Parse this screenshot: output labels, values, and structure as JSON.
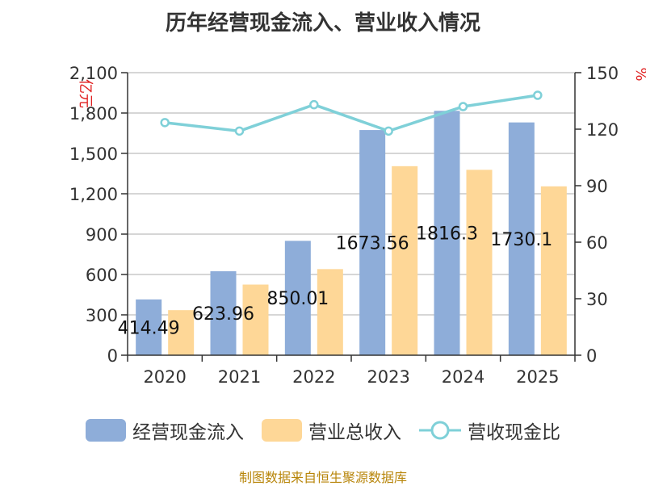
{
  "chart_data": {
    "type": "bar",
    "title": "历年经营现金流入、营业收入情况",
    "categories": [
      "2020",
      "2021",
      "2022",
      "2023",
      "2024",
      "2025"
    ],
    "series": [
      {
        "name": "经营现金流入",
        "kind": "bar",
        "axis": "left",
        "color": "#8eadd9",
        "values": [
          414.49,
          623.96,
          850.01,
          1673.56,
          1816.3,
          1730.1
        ],
        "labels": [
          "414.49",
          "623.96",
          "850.01",
          "1673.56",
          "1816.3",
          "1730.1"
        ]
      },
      {
        "name": "营业总收入",
        "kind": "bar",
        "axis": "left",
        "color": "#fed797",
        "values": [
          335,
          525,
          640,
          1405,
          1378,
          1255
        ]
      },
      {
        "name": "营收现金比",
        "kind": "line",
        "axis": "right",
        "color": "#7fd0d8",
        "values": [
          123.5,
          119,
          133,
          119,
          132,
          138
        ]
      }
    ],
    "ylabel_left": "亿元",
    "ylabel_right": "%",
    "ylim_left": [
      0,
      2100
    ],
    "yticks_left": [
      "0",
      "300",
      "600",
      "900",
      "1,200",
      "1,500",
      "1,800",
      "2,100"
    ],
    "ylim_right": [
      0,
      150
    ],
    "yticks_right": [
      "0",
      "30",
      "60",
      "90",
      "120",
      "150"
    ],
    "grid": true,
    "legend": "bottom"
  },
  "footer": "制图数据来自恒生聚源数据库"
}
